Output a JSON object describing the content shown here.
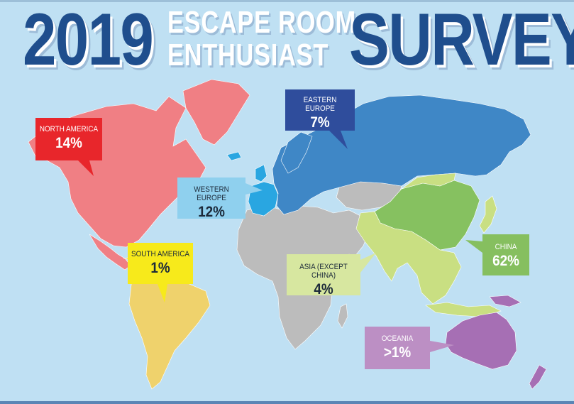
{
  "title": {
    "year": "2019",
    "line1": "ESCAPE ROOM",
    "line2": "ENTHUSIAST",
    "word": "SURVEY"
  },
  "regions": {
    "north_america": {
      "name": "NORTH AMERICA",
      "value": "14%",
      "color": "#f07f84",
      "label_color": "#e8262b",
      "text_color": "#ffffff"
    },
    "eastern_europe": {
      "name": "EASTERN EUROPE",
      "value": "7%",
      "color": "#3f87c6",
      "label_color": "#2f4d9c",
      "text_color": "#ffffff"
    },
    "western_europe": {
      "name": "WESTERN EUROPE",
      "value": "12%",
      "color": "#29a6e1",
      "label_color": "#8fd0ee",
      "text_color": "#1c2a3a"
    },
    "south_america": {
      "name": "SOUTH AMERICA",
      "value": "1%",
      "color": "#efd26c",
      "label_color": "#f7ea1b",
      "text_color": "#1c2a3a"
    },
    "asia_except_china": {
      "name": "ASIA (EXCEPT CHINA)",
      "value": "4%",
      "color": "#c9df82",
      "label_color": "#d7e7a0",
      "text_color": "#1c2a3a"
    },
    "china": {
      "name": "CHINA",
      "value": "62%",
      "color": "#86c160",
      "label_color": "#86bf5f",
      "text_color": "#ffffff"
    },
    "oceania": {
      "name": "OCEANIA",
      "value": ">1%",
      "color": "#a66fb4",
      "label_color": "#bc8fc4",
      "text_color": "#ffffff"
    },
    "other": {
      "color": "#bcbcbc"
    }
  }
}
